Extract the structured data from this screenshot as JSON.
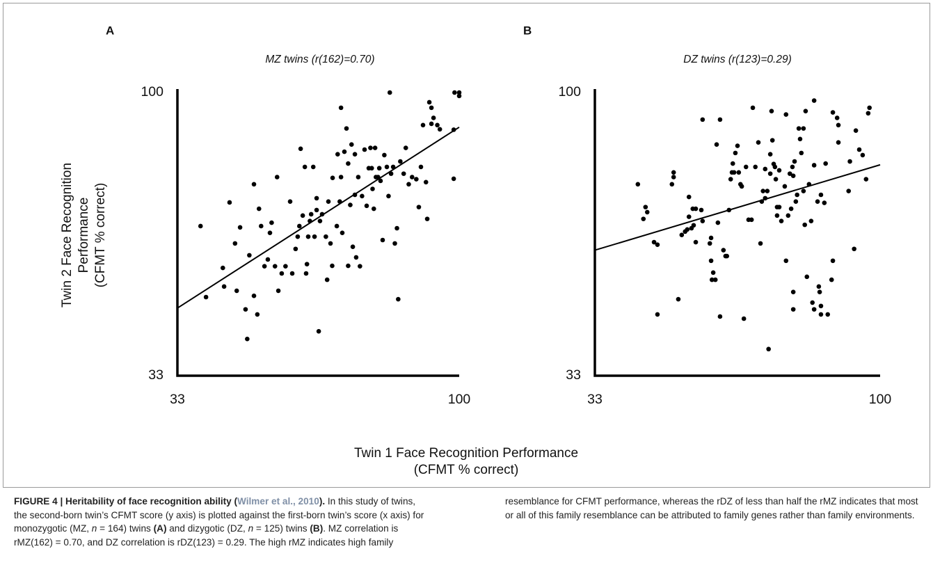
{
  "chart_data": [
    {
      "type": "scatter",
      "panel": "A",
      "title": "MZ twins (r(162)=0.70)",
      "xlim": [
        33,
        100
      ],
      "ylim": [
        33,
        100
      ],
      "xticks": [
        33,
        100
      ],
      "yticks": [
        33,
        100
      ],
      "color": "#000000",
      "x": [
        38.5,
        39.8,
        44.1,
        43.8,
        45.4,
        46.7,
        47.1,
        47.9,
        49.2,
        49.6,
        50.1,
        51.2,
        51.2,
        52.0,
        52.4,
        52.9,
        53.7,
        54.5,
        55.0,
        55.4,
        56.2,
        56.7,
        57.0,
        57.8,
        58.7,
        59.8,
        60.3,
        61.1,
        61.6,
        62.0,
        62.3,
        62.8,
        63.3,
        63.6,
        63.8,
        64.1,
        64.5,
        64.8,
        65.3,
        65.6,
        66.1,
        66.1,
        66.6,
        66.9,
        67.4,
        68.3,
        68.6,
        68.9,
        69.4,
        69.8,
        69.9,
        70.9,
        71.1,
        71.6,
        71.9,
        71.9,
        72.2,
        72.7,
        73.2,
        73.6,
        73.6,
        74.1,
        74.4,
        74.7,
        75.2,
        75.2,
        75.5,
        76.0,
        76.4,
        76.9,
        77.5,
        78.0,
        78.5,
        78.9,
        79.2,
        79.4,
        79.7,
        80.0,
        80.2,
        80.7,
        81.0,
        81.3,
        81.8,
        82.2,
        82.8,
        83.2,
        83.8,
        84.3,
        84.7,
        85.2,
        85.5,
        86.0,
        86.8,
        87.3,
        88.0,
        88.8,
        89.8,
        90.4,
        90.9,
        91.4,
        92.1,
        92.4,
        92.9,
        93.4,
        93.4,
        93.9,
        94.8,
        95.4,
        98.7,
        98.7,
        98.9,
        100,
        100,
        83.5
      ],
      "values": [
        68.4,
        51.6,
        54.1,
        58.5,
        74.0,
        64.3,
        53.1,
        68.1,
        48.7,
        41.7,
        61.5,
        51.9,
        78.3,
        47.5,
        72.5,
        68.4,
        58.9,
        60.5,
        66.8,
        69.2,
        58.9,
        80.0,
        53.1,
        57.2,
        58.9,
        74.2,
        57.2,
        63.0,
        65.9,
        68.4,
        86.7,
        70.9,
        82.4,
        57.2,
        59.4,
        65.9,
        69.6,
        71.2,
        82.4,
        65.9,
        72.2,
        75.0,
        43.5,
        69.6,
        71.2,
        65.9,
        55.7,
        74.2,
        64.3,
        59.0,
        79.8,
        68.4,
        85.4,
        74.2,
        80.0,
        96.4,
        66.8,
        86.0,
        91.5,
        83.2,
        59.0,
        73.4,
        87.7,
        63.5,
        75.8,
        85.4,
        61.0,
        80.0,
        58.9,
        75.5,
        86.5,
        73.2,
        82.1,
        86.9,
        82.1,
        77.2,
        72.5,
        86.9,
        80.0,
        80.0,
        82.1,
        79.1,
        65.1,
        85.2,
        82.4,
        75.5,
        80.8,
        82.4,
        64.3,
        67.9,
        51.1,
        83.7,
        80.8,
        86.9,
        78.3,
        80.0,
        79.5,
        72.9,
        82.4,
        92.3,
        78.8,
        70.1,
        97.7,
        96.4,
        92.6,
        94.0,
        92.3,
        91.3,
        91.2,
        79.6,
        100,
        100,
        99.2,
        100
      ],
      "fit": {
        "x": [
          33,
          100
        ],
        "y": [
          49.0,
          91.8
        ]
      }
    },
    {
      "type": "scatter",
      "panel": "B",
      "title": "DZ twins (r(123)=0.29)",
      "xlim": [
        33,
        100
      ],
      "ylim": [
        33,
        100
      ],
      "xticks": [
        33,
        100
      ],
      "yticks": [
        33,
        100
      ],
      "color": "#000000",
      "x": [
        43.1,
        44.4,
        44.9,
        45.3,
        46.9,
        47.7,
        47.7,
        51.1,
        51.5,
        51.5,
        52.6,
        53.4,
        54.2,
        54.7,
        55.1,
        55.1,
        55.7,
        56.0,
        56.2,
        56.7,
        56.7,
        58.0,
        58.3,
        58.3,
        60.0,
        60.3,
        60.3,
        60.5,
        60.8,
        61.3,
        61.6,
        61.9,
        62.4,
        62.4,
        63.2,
        63.7,
        64.0,
        64.5,
        64.9,
        65.2,
        65.4,
        65.7,
        66.0,
        66.5,
        66.8,
        67.2,
        67.5,
        68.0,
        68.5,
        69.1,
        69.8,
        70.1,
        70.7,
        71.4,
        71.9,
        72.2,
        72.5,
        73.0,
        73.0,
        73.5,
        73.8,
        74.2,
        74.2,
        74.5,
        74.7,
        75.0,
        75.3,
        75.5,
        75.8,
        75.8,
        76.3,
        76.3,
        76.8,
        77.6,
        77.9,
        77.9,
        78.4,
        78.8,
        79.1,
        79.4,
        79.6,
        79.6,
        79.6,
        79.9,
        80.2,
        80.5,
        80.9,
        81.2,
        81.5,
        82.0,
        82.0,
        82.3,
        82.5,
        82.8,
        83.3,
        83.8,
        84.1,
        84.5,
        84.5,
        84.5,
        85.3,
        85.6,
        85.8,
        86.1,
        86.1,
        86.1,
        86.9,
        87.2,
        87.7,
        88.6,
        88.9,
        88.9,
        89.9,
        90.2,
        90.2,
        92.6,
        92.9,
        93.9,
        94.3,
        95.1,
        95.9,
        96.7,
        97.2,
        97.5
      ],
      "values": [
        78.3,
        70.1,
        72.9,
        71.7,
        64.6,
        64.0,
        47.5,
        78.3,
        81.1,
        80.0,
        51.1,
        66.3,
        67.1,
        67.6,
        70.6,
        75.3,
        67.9,
        72.5,
        68.6,
        64.6,
        72.5,
        72.2,
        93.6,
        69.6,
        64.3,
        65.6,
        60.2,
        55.7,
        57.4,
        55.7,
        87.7,
        69.2,
        93.6,
        47.0,
        62.7,
        61.3,
        61.3,
        72.2,
        79.5,
        81.1,
        83.2,
        81.1,
        85.7,
        87.4,
        81.1,
        78.3,
        77.8,
        46.5,
        82.4,
        69.9,
        69.9,
        96.4,
        82.4,
        88.2,
        64.3,
        74.2,
        76.7,
        75.0,
        81.9,
        76.7,
        39.3,
        85.4,
        80.8,
        95.6,
        88.7,
        83.1,
        82.4,
        79.5,
        72.9,
        70.9,
        72.9,
        81.6,
        69.6,
        77.8,
        94.8,
        60.2,
        70.9,
        80.8,
        72.5,
        82.4,
        52.8,
        48.7,
        80.3,
        83.7,
        74.2,
        75.8,
        91.5,
        89.0,
        85.7,
        76.7,
        91.5,
        68.7,
        95.6,
        56.4,
        78.3,
        69.6,
        50.3,
        48.7,
        98.1,
        82.8,
        74.2,
        54.1,
        52.8,
        49.5,
        47.5,
        75.8,
        73.9,
        83.2,
        47.5,
        55.7,
        60.2,
        95.3,
        94.0,
        92.3,
        88.2,
        76.7,
        83.7,
        63.0,
        91.0,
        86.5,
        85.2,
        79.5,
        95.1,
        96.4
      ],
      "fit": {
        "x": [
          33,
          100
        ],
        "y": [
          62.7,
          82.9
        ]
      }
    }
  ],
  "figure": {
    "y_label": [
      "Twin 2 Face Recognition",
      "Performance",
      "(CFMT % correct)"
    ],
    "x_label": [
      "Twin 1 Face Recognition Performance",
      "(CFMT % correct)"
    ]
  },
  "caption": [
    {
      "text": "FIGURE 4 | Heritability of face recognition ability (",
      "style": "bold"
    },
    {
      "text": "Wilmer et al., 2010",
      "style": "link"
    },
    {
      "text": ").",
      "style": "bold"
    },
    {
      "text": " In this study of twins, the second-born twin’s CFMT score (y axis) is plotted against the first-born twin’s score (x axis) for monozygotic (MZ, ",
      "style": "normal"
    },
    {
      "text": "n",
      "style": "italic"
    },
    {
      "text": " = 164) twins ",
      "style": "normal"
    },
    {
      "text": "(A)",
      "style": "bold"
    },
    {
      "text": " and dizygotic (DZ, ",
      "style": "normal"
    },
    {
      "text": "n",
      "style": "italic"
    },
    {
      "text": " = 125) twins ",
      "style": "normal"
    },
    {
      "text": "(B)",
      "style": "bold"
    },
    {
      "text": ". MZ correlation is rMZ(162) = 0.70, and DZ correlation is rDZ(123) = 0.29. The high rMZ indicates high family resemblance for CFMT performance, whereas the rDZ of less than half the rMZ indicates that most or all of this family resemblance can be attributed to family genes rather than family environments.",
      "style": "normal"
    }
  ]
}
